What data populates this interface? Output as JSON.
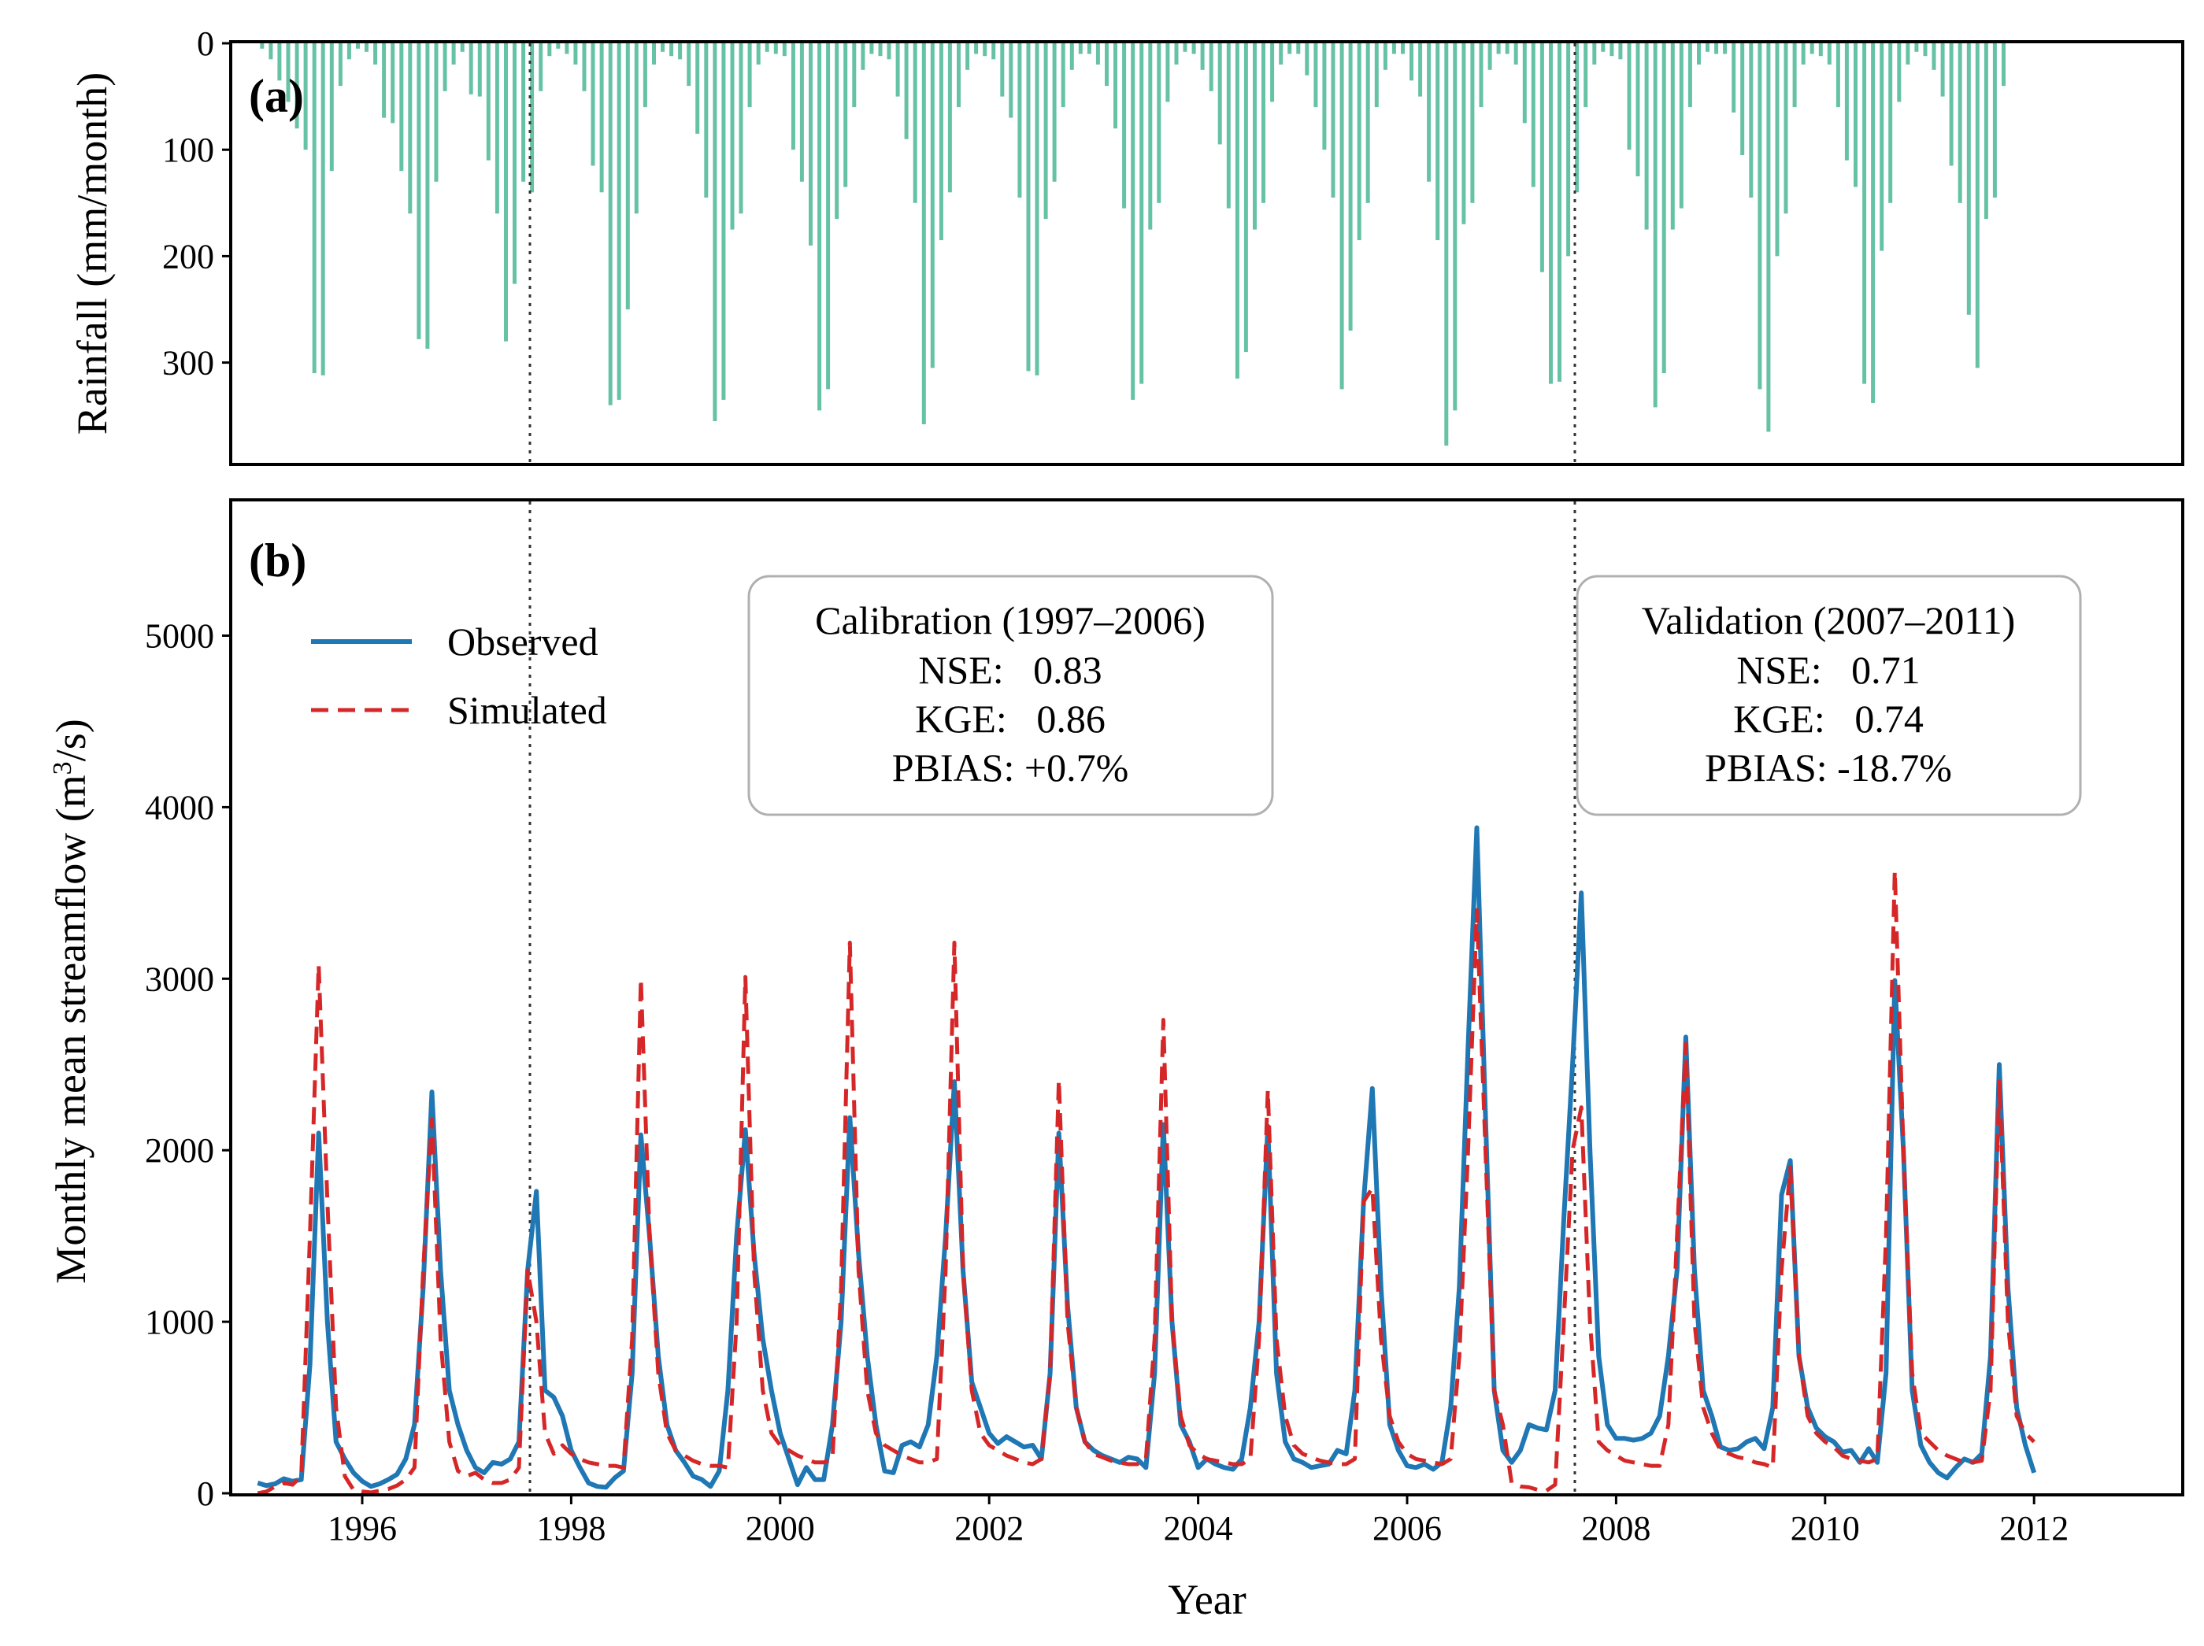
{
  "panel_a": {
    "label": "(a)",
    "ylabel": "Rainfall (mm/month)"
  },
  "panel_b": {
    "label": "(b)",
    "ylabel_main": "Monthly mean streamflow (m",
    "ylabel_sup": "3",
    "ylabel_tail": "/s)",
    "xlabel": "Year"
  },
  "legend": {
    "observed": "Observed",
    "simulated": "Simulated"
  },
  "calibration_box": {
    "title": "Calibration (1997–2006)",
    "nse": "NSE:   0.83",
    "kge": "KGE:   0.86",
    "pbias": "PBIAS: +0.7%"
  },
  "validation_box": {
    "title": "Validation (2007–2011)",
    "nse": "NSE:   0.71",
    "kge": "KGE:   0.74",
    "pbias": "PBIAS: -18.7%"
  },
  "colors": {
    "observed": "#1f77b4",
    "simulated": "#d62728",
    "rainfall": "#66c2a5"
  },
  "chart_data": [
    {
      "type": "bar",
      "panel": "(a)",
      "ylabel": "Rainfall (mm/month)",
      "ylim": [
        395,
        0
      ],
      "yticks": [
        0,
        100,
        200,
        300
      ],
      "inverted_y": true,
      "x_start": "1995-01",
      "x_step": "1 month",
      "rainfall": [
        5,
        15,
        35,
        55,
        80,
        100,
        310,
        312,
        120,
        40,
        15,
        5,
        8,
        20,
        70,
        75,
        120,
        160,
        278,
        287,
        130,
        45,
        20,
        8,
        48,
        50,
        110,
        160,
        280,
        226,
        130,
        140,
        45,
        12,
        5,
        10,
        20,
        45,
        115,
        140,
        340,
        335,
        250,
        160,
        60,
        20,
        8,
        12,
        15,
        40,
        85,
        145,
        355,
        335,
        175,
        160,
        60,
        20,
        8,
        10,
        12,
        100,
        130,
        190,
        345,
        325,
        165,
        135,
        60,
        25,
        10,
        12,
        15,
        50,
        90,
        150,
        358,
        305,
        185,
        140,
        60,
        25,
        10,
        12,
        15,
        50,
        70,
        145,
        308,
        312,
        165,
        130,
        60,
        25,
        10,
        10,
        20,
        40,
        80,
        155,
        335,
        320,
        175,
        150,
        55,
        20,
        8,
        10,
        25,
        45,
        95,
        155,
        315,
        290,
        175,
        150,
        55,
        20,
        10,
        10,
        30,
        60,
        100,
        145,
        325,
        270,
        185,
        150,
        60,
        25,
        10,
        10,
        35,
        50,
        130,
        185,
        378,
        345,
        170,
        150,
        60,
        25,
        10,
        10,
        20,
        75,
        135,
        215,
        320,
        318,
        200,
        140,
        60,
        20,
        8,
        12,
        15,
        100,
        125,
        175,
        342,
        310,
        175,
        155,
        60,
        20,
        8,
        10,
        10,
        65,
        105,
        145,
        325,
        365,
        200,
        160,
        60,
        20,
        10,
        12,
        20,
        60,
        110,
        135,
        320,
        338,
        195,
        150,
        55,
        20,
        8,
        12,
        25,
        50,
        115,
        150,
        255,
        305,
        165,
        145,
        40,
        0,
        0,
        0
      ]
    },
    {
      "type": "line",
      "panel": "(b)",
      "xlabel": "Year",
      "ylabel": "Monthly mean streamflow (m3/s)",
      "x_start": "1995-01",
      "x_step": "1 month",
      "xlim": [
        "1994-01",
        "2012-11"
      ],
      "xticks": [
        1996,
        1998,
        2000,
        2002,
        2004,
        2006,
        2008,
        2010,
        2012
      ],
      "ylim": [
        0,
        5800
      ],
      "yticks": [
        0,
        1000,
        2000,
        3000,
        4000,
        5000
      ],
      "vlines": [
        "1997-01",
        "2007-01"
      ],
      "series": [
        {
          "name": "Observed",
          "values": [
            60,
            45,
            55,
            85,
            70,
            80,
            750,
            2100,
            1000,
            300,
            200,
            120,
            70,
            40,
            55,
            80,
            110,
            200,
            400,
            1200,
            2340,
            1300,
            600,
            400,
            250,
            150,
            120,
            180,
            170,
            200,
            300,
            1300,
            1760,
            600,
            560,
            450,
            250,
            150,
            60,
            40,
            35,
            90,
            130,
            700,
            2090,
            1500,
            800,
            400,
            250,
            180,
            100,
            80,
            40,
            130,
            600,
            1500,
            2120,
            1400,
            900,
            600,
            350,
            200,
            50,
            150,
            80,
            80,
            400,
            1000,
            2190,
            1400,
            800,
            400,
            130,
            120,
            280,
            300,
            270,
            400,
            800,
            1500,
            2400,
            1300,
            650,
            500,
            350,
            290,
            330,
            300,
            270,
            280,
            200,
            700,
            2100,
            1100,
            500,
            300,
            250,
            220,
            200,
            180,
            210,
            200,
            150,
            700,
            2150,
            1000,
            400,
            300,
            150,
            200,
            170,
            150,
            140,
            200,
            500,
            1000,
            2140,
            700,
            300,
            200,
            180,
            150,
            160,
            170,
            250,
            230,
            600,
            1700,
            2360,
            1200,
            400,
            250,
            160,
            150,
            170,
            140,
            180,
            500,
            1200,
            2600,
            3880,
            2200,
            600,
            250,
            180,
            250,
            400,
            380,
            370,
            600,
            1600,
            2500,
            3500,
            2000,
            800,
            400,
            320,
            320,
            310,
            320,
            350,
            450,
            800,
            1300,
            2660,
            1300,
            600,
            450,
            270,
            250,
            260,
            300,
            320,
            260,
            500,
            1740,
            1940,
            800,
            500,
            380,
            330,
            300,
            240,
            250,
            180,
            260,
            180,
            700,
            2990,
            2000,
            600,
            280,
            180,
            120,
            90,
            150,
            200,
            180,
            230,
            800,
            2500,
            1200,
            500,
            280,
            120
          ]
        },
        {
          "name": "Simulated",
          "values": [
            0,
            10,
            40,
            60,
            50,
            100,
            1500,
            3080,
            1700,
            500,
            100,
            20,
            10,
            5,
            15,
            25,
            45,
            80,
            150,
            1300,
            2180,
            900,
            300,
            130,
            100,
            120,
            80,
            60,
            60,
            80,
            150,
            1300,
            1000,
            350,
            230,
            280,
            230,
            200,
            180,
            170,
            160,
            160,
            150,
            900,
            3000,
            1500,
            700,
            350,
            250,
            220,
            190,
            170,
            160,
            160,
            150,
            1000,
            3010,
            1300,
            600,
            350,
            280,
            250,
            220,
            200,
            180,
            180,
            200,
            1200,
            3210,
            1300,
            600,
            350,
            280,
            250,
            220,
            200,
            180,
            180,
            200,
            1300,
            3210,
            1300,
            600,
            350,
            280,
            250,
            220,
            200,
            180,
            170,
            200,
            700,
            2410,
            1000,
            500,
            300,
            230,
            210,
            190,
            180,
            170,
            170,
            200,
            900,
            2760,
            1000,
            450,
            280,
            230,
            200,
            190,
            180,
            170,
            170,
            200,
            900,
            2350,
            900,
            450,
            280,
            230,
            210,
            190,
            180,
            170,
            170,
            200,
            1700,
            1780,
            900,
            450,
            300,
            230,
            200,
            190,
            180,
            170,
            200,
            800,
            2000,
            3400,
            2000,
            600,
            400,
            60,
            40,
            35,
            20,
            15,
            50,
            1000,
            2000,
            2250,
            1000,
            300,
            250,
            220,
            190,
            180,
            170,
            160,
            160,
            400,
            1500,
            2620,
            1000,
            500,
            350,
            250,
            230,
            210,
            200,
            180,
            170,
            150,
            1300,
            1900,
            800,
            450,
            350,
            300,
            270,
            220,
            200,
            190,
            180,
            200,
            1500,
            3630,
            2000,
            700,
            350,
            300,
            250,
            220,
            200,
            180,
            180,
            190,
            600,
            2400,
            1000,
            450,
            350,
            300
          ]
        }
      ]
    }
  ]
}
